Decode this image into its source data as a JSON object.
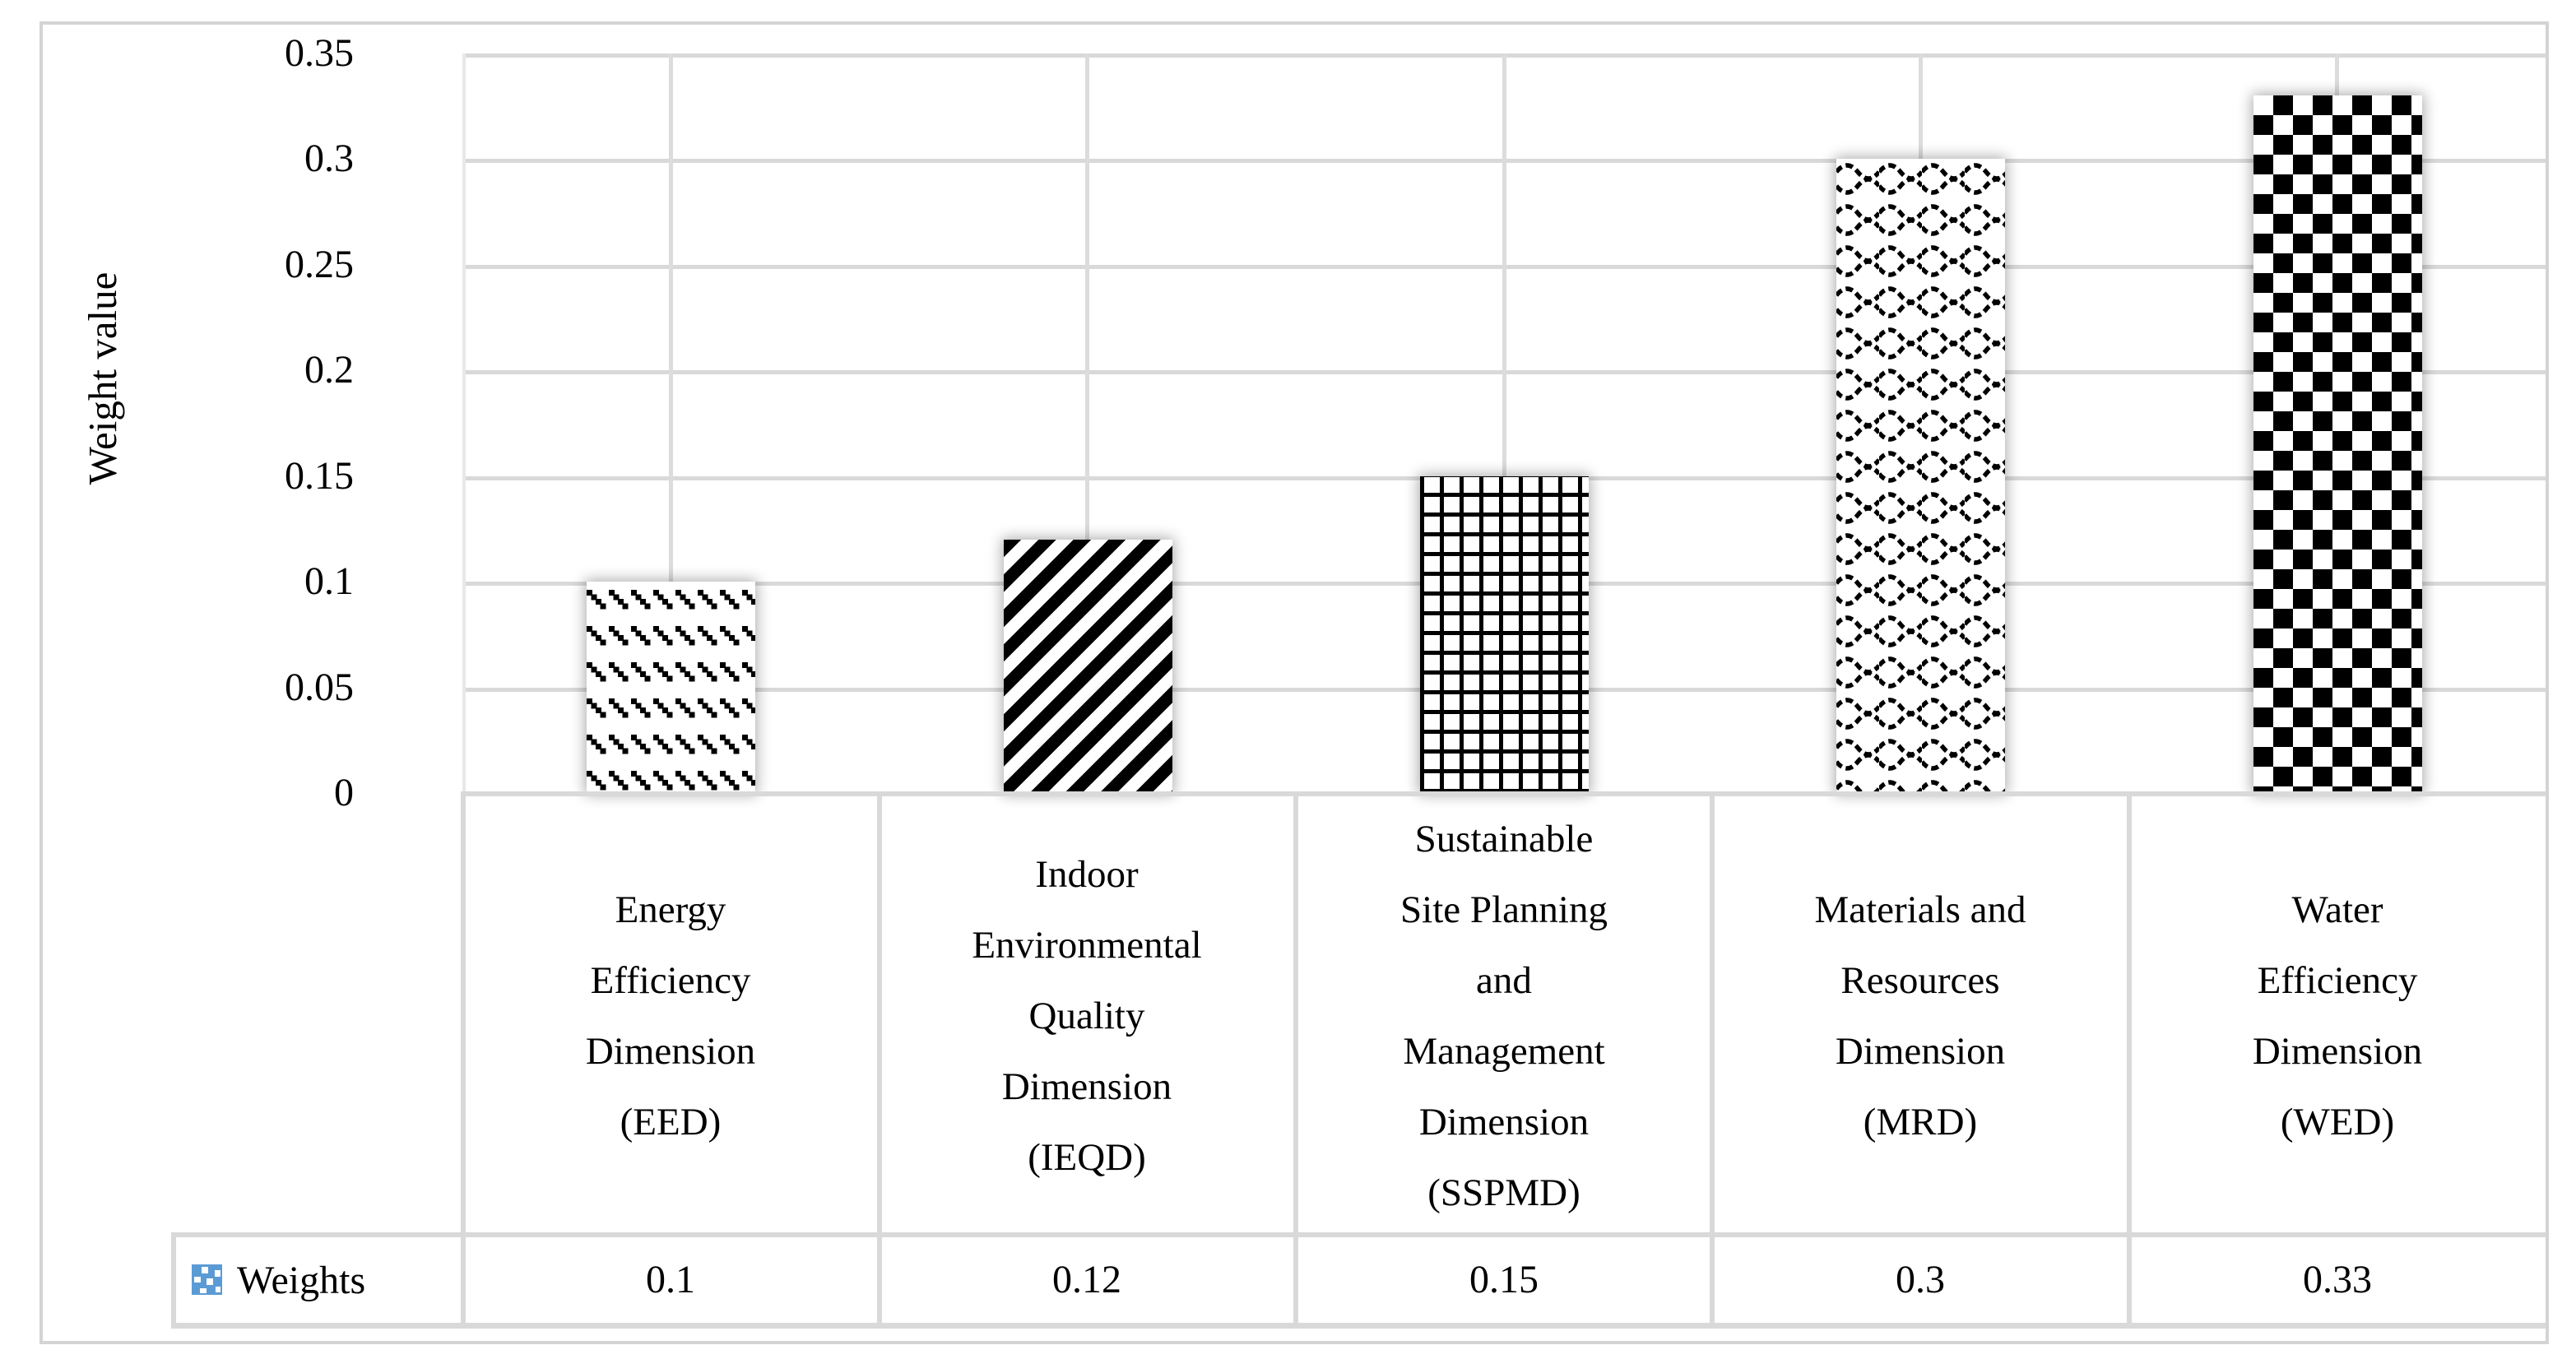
{
  "chart_data": {
    "type": "bar",
    "title": "",
    "xlabel": "",
    "ylabel": "Weight value",
    "series_name": "Weights",
    "categories": [
      "Energy Efficiency Dimension (EED)",
      "Indoor Environmental Quality Dimension (IEQD)",
      "Sustainable Site Planning and Management Dimension (SSPMD)",
      "Materials and Resources Dimension (MRD)",
      "Water Efficiency Dimension (WED)"
    ],
    "category_display": [
      "Energy\nEfficiency\nDimension\n(EED)",
      "Indoor\nEnvironmental\nQuality\nDimension\n(IEQD)",
      "Sustainable\nSite Planning\nand\nManagement\nDimension\n(SSPMD)",
      "Materials and\nResources\nDimension\n(MRD)",
      "Water\nEfficiency\nDimension\n(WED)"
    ],
    "values": [
      0.1,
      0.12,
      0.15,
      0.3,
      0.33
    ],
    "value_labels": [
      "0.1",
      "0.12",
      "0.15",
      "0.3",
      "0.33"
    ],
    "yticks": [
      "0.35",
      "0.3",
      "0.25",
      "0.2",
      "0.15",
      "0.1",
      "0.05",
      "0"
    ],
    "ytick_values": [
      0.35,
      0.3,
      0.25,
      0.2,
      0.15,
      0.1,
      0.05,
      0
    ],
    "ylim": [
      0,
      0.35
    ],
    "grid": true,
    "gridlines": "horizontal every 0.05, vertical at category centers",
    "legend_position": "table-row-left",
    "bar_patterns": [
      "dashed-diagonal",
      "diagonal-stripes",
      "grid",
      "wave",
      "checkerboard"
    ],
    "colors": {
      "pattern_foreground": "#000000",
      "pattern_background": "#ffffff",
      "legend_marker_blue": "#5b9bd5",
      "gridline": "#d9d9d9",
      "frame": "#d4d4d4"
    }
  }
}
